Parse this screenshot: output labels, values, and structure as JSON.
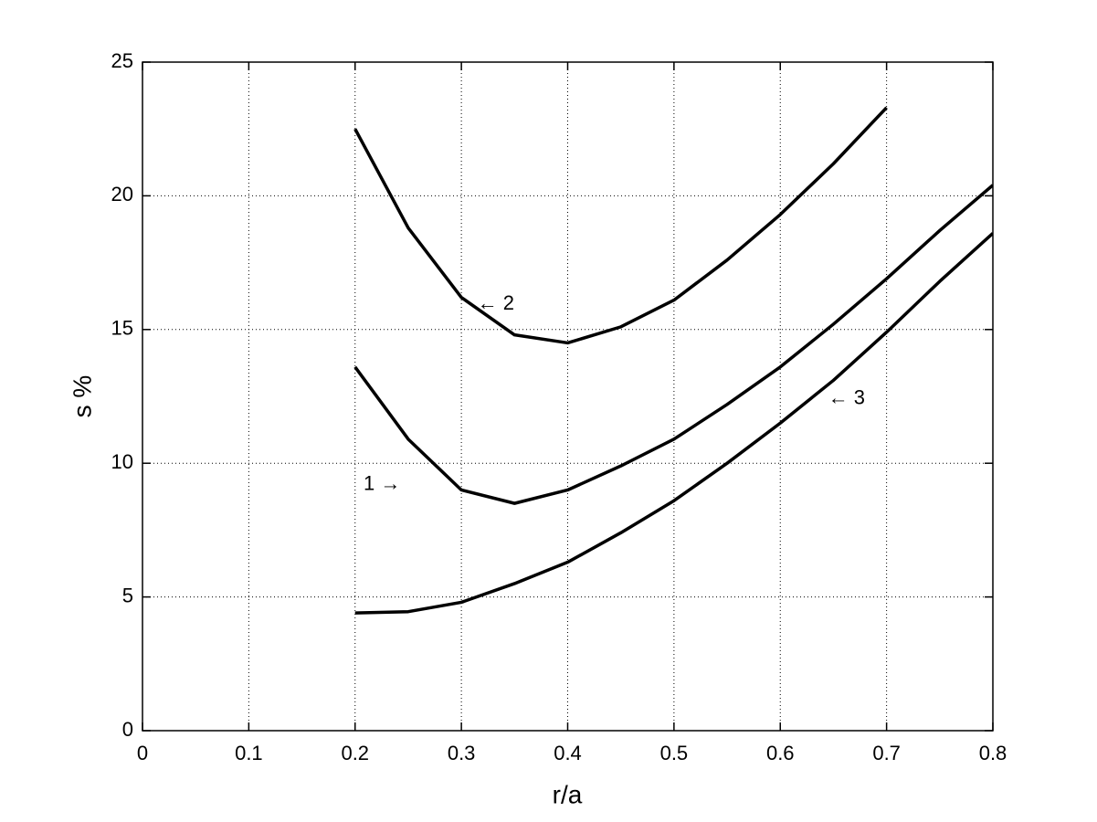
{
  "chart_data": {
    "type": "line",
    "x_label": "r/a",
    "y_label": "s %",
    "x": [
      0.2,
      0.25,
      0.3,
      0.35,
      0.4,
      0.45,
      0.5,
      0.55,
      0.6,
      0.65,
      0.7,
      0.75,
      0.8
    ],
    "series": [
      {
        "color": "#000000",
        "values": [
          13.6,
          10.9,
          9.0,
          8.5,
          9.0,
          9.9,
          10.9,
          12.2,
          13.6,
          15.2,
          16.9,
          18.7,
          20.4
        ]
      },
      {
        "color": "#000000",
        "values": [
          22.5,
          18.8,
          16.2,
          14.8,
          14.5,
          15.1,
          16.1,
          17.6,
          19.3,
          21.2,
          23.3,
          null,
          null
        ]
      },
      {
        "color": "#000000",
        "values": [
          4.4,
          4.45,
          4.8,
          5.5,
          6.3,
          7.4,
          8.6,
          10.0,
          11.5,
          13.1,
          14.9,
          16.8,
          18.6
        ]
      }
    ],
    "annotations": [
      {
        "text": "1 →",
        "x": 0.208,
        "y": 9.2
      },
      {
        "text": "← 2",
        "x": 0.315,
        "y": 15.95
      },
      {
        "text": "← 3",
        "x": 0.645,
        "y": 12.4
      }
    ],
    "xlim": [
      0,
      0.8
    ],
    "ylim": [
      0,
      25
    ],
    "xticks": [
      0,
      0.1,
      0.2,
      0.3,
      0.4,
      0.5,
      0.6,
      0.7,
      0.8
    ],
    "yticks": [
      0,
      5,
      10,
      15,
      20,
      25
    ],
    "grid": true
  }
}
